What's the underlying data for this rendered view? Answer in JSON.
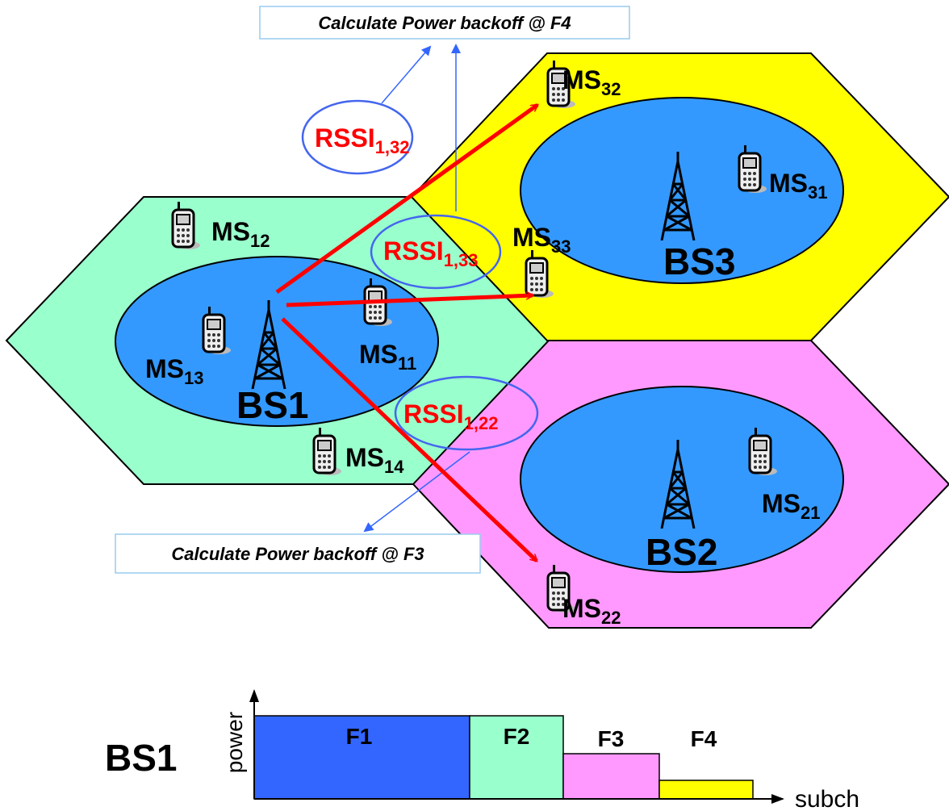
{
  "callouts": {
    "top": "Calculate Power backoff @ F4",
    "bottom": "Calculate Power backoff @ F3"
  },
  "cells": {
    "bs1": {
      "station": "BS1",
      "mobiles": [
        {
          "main": "MS",
          "sub": "12"
        },
        {
          "main": "MS",
          "sub": "13"
        },
        {
          "main": "MS",
          "sub": "11"
        },
        {
          "main": "MS",
          "sub": "14"
        }
      ]
    },
    "bs3": {
      "station": "BS3",
      "mobiles": [
        {
          "main": "MS",
          "sub": "32"
        },
        {
          "main": "MS",
          "sub": "31"
        },
        {
          "main": "MS",
          "sub": "33"
        }
      ]
    },
    "bs2": {
      "station": "BS2",
      "mobiles": [
        {
          "main": "MS",
          "sub": "21"
        },
        {
          "main": "MS",
          "sub": "22"
        }
      ]
    }
  },
  "rssi": [
    {
      "main": "RSSI",
      "sub": "1,32"
    },
    {
      "main": "RSSI",
      "sub": "1,33"
    },
    {
      "main": "RSSI",
      "sub": "1,22"
    }
  ],
  "spectrum": {
    "station": "BS1",
    "y_axis": "power",
    "x_axis": "subch",
    "bands": [
      "F1",
      "F2",
      "F3",
      "F4"
    ]
  }
}
